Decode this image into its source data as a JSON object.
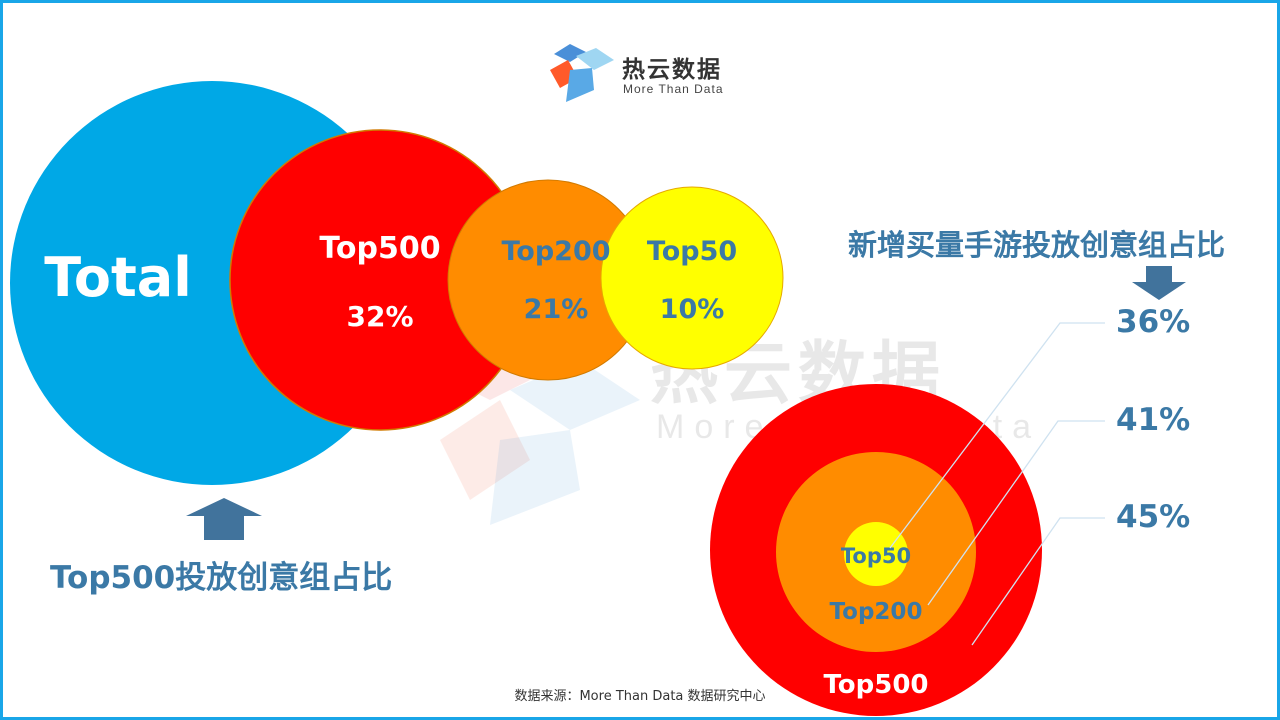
{
  "brand": {
    "name": "热云数据",
    "tagline": "More Than Data",
    "watermark_name": "热云数据",
    "watermark_tagline": "More Than Data"
  },
  "colors": {
    "total": "#00a8e6",
    "top500": "#ff0000",
    "top200": "#ff8c00",
    "top50": "#ffff00",
    "accent_text": "#3b79a6"
  },
  "left_caption": "Top500投放创意组占比",
  "right_title": "新增买量手游投放创意组占比",
  "footer": "数据来源：More Than Data 数据研究中心",
  "chart_data": [
    {
      "type": "bubble",
      "title": "Top500投放创意组占比",
      "categories": [
        "Total",
        "Top500",
        "Top200",
        "Top50"
      ],
      "labels": [
        "Total",
        "Top500",
        "Top200",
        "Top50"
      ],
      "values": [
        null,
        32,
        21,
        10
      ],
      "value_labels": [
        "",
        "32%",
        "21%",
        "10%"
      ],
      "unit": "%"
    },
    {
      "type": "nested-circles",
      "title": "新增买量手游投放创意组占比",
      "categories": [
        "Top50",
        "Top200",
        "Top500"
      ],
      "labels": [
        "Top50",
        "Top200",
        "Top500"
      ],
      "values": [
        36,
        41,
        45
      ],
      "value_labels": [
        "36%",
        "41%",
        "45%"
      ],
      "unit": "%"
    }
  ]
}
